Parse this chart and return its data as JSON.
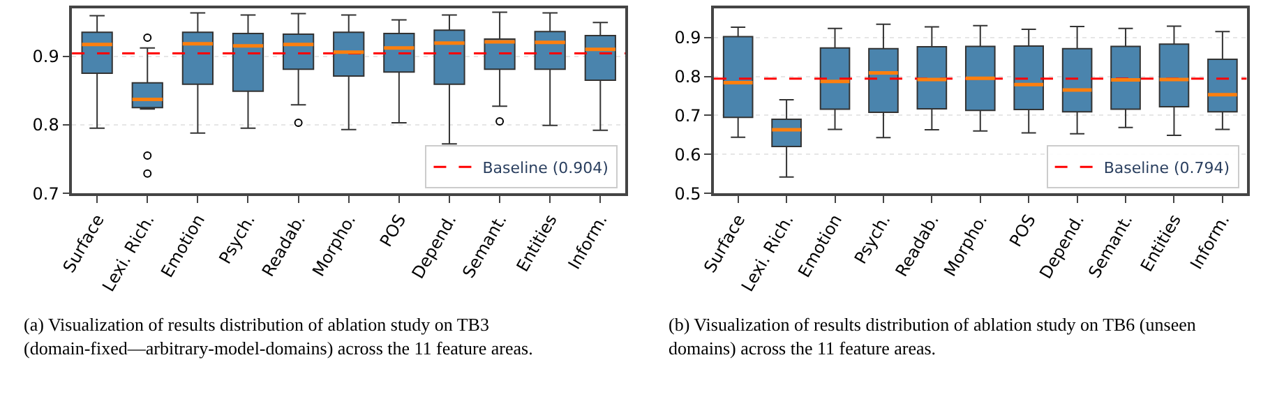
{
  "chart_data": [
    {
      "type": "box",
      "categories": [
        "Surface",
        "Lexi. Rich.",
        "Emotion",
        "Psych.",
        "Readab.",
        "Morpho.",
        "POS",
        "Depend.",
        "Semant.",
        "Entities",
        "Inform."
      ],
      "series": [
        {
          "color": "#4a84ad",
          "boxes": [
            {
              "low": 0.795,
              "q1": 0.875,
              "median": 0.917,
              "q3": 0.935,
              "high": 0.959
            },
            {
              "low": 0.823,
              "q1": 0.825,
              "median": 0.837,
              "q3": 0.861,
              "high": 0.912,
              "outliers": [
                0.927,
                0.755,
                0.729
              ]
            },
            {
              "low": 0.788,
              "q1": 0.859,
              "median": 0.918,
              "q3": 0.935,
              "high": 0.963
            },
            {
              "low": 0.795,
              "q1": 0.849,
              "median": 0.915,
              "q3": 0.933,
              "high": 0.96
            },
            {
              "low": 0.829,
              "q1": 0.881,
              "median": 0.917,
              "q3": 0.932,
              "high": 0.962,
              "outliers": [
                0.803
              ]
            },
            {
              "low": 0.793,
              "q1": 0.871,
              "median": 0.906,
              "q3": 0.935,
              "high": 0.96
            },
            {
              "low": 0.803,
              "q1": 0.877,
              "median": 0.912,
              "q3": 0.933,
              "high": 0.953
            },
            {
              "low": 0.772,
              "q1": 0.859,
              "median": 0.919,
              "q3": 0.938,
              "high": 0.96
            },
            {
              "low": 0.827,
              "q1": 0.881,
              "median": 0.921,
              "q3": 0.925,
              "high": 0.964,
              "outliers": [
                0.805
              ]
            },
            {
              "low": 0.799,
              "q1": 0.881,
              "median": 0.92,
              "q3": 0.936,
              "high": 0.963
            },
            {
              "low": 0.792,
              "q1": 0.865,
              "median": 0.91,
              "q3": 0.93,
              "high": 0.949
            }
          ]
        }
      ],
      "ylim": [
        0.7,
        0.97
      ],
      "yticks": [
        0.7,
        0.8,
        0.9
      ],
      "grid": "y",
      "legend": "bottom right",
      "ref_lines": [
        {
          "axis": "y",
          "value": 0.904,
          "label": "Baseline (0.904)",
          "color": "#ff0000",
          "line_style": "dashed"
        }
      ],
      "annotations": [
        "(a) Visualization of results distribution of ablation study on TB3 (domain-fixed—arbitrary-model-domains) across the 11 feature areas."
      ]
    },
    {
      "type": "box",
      "categories": [
        "Surface",
        "Lexi. Rich.",
        "Emotion",
        "Psych.",
        "Readab.",
        "Morpho.",
        "POS",
        "Depend.",
        "Semant.",
        "Entities",
        "Inform."
      ],
      "series": [
        {
          "color": "#4a84ad",
          "boxes": [
            {
              "low": 0.644,
              "q1": 0.695,
              "median": 0.784,
              "q3": 0.902,
              "high": 0.926
            },
            {
              "low": 0.542,
              "q1": 0.62,
              "median": 0.663,
              "q3": 0.69,
              "high": 0.74
            },
            {
              "low": 0.664,
              "q1": 0.716,
              "median": 0.787,
              "q3": 0.873,
              "high": 0.923
            },
            {
              "low": 0.643,
              "q1": 0.708,
              "median": 0.809,
              "q3": 0.871,
              "high": 0.934
            },
            {
              "low": 0.663,
              "q1": 0.717,
              "median": 0.792,
              "q3": 0.876,
              "high": 0.927
            },
            {
              "low": 0.66,
              "q1": 0.713,
              "median": 0.795,
              "q3": 0.877,
              "high": 0.93
            },
            {
              "low": 0.655,
              "q1": 0.715,
              "median": 0.779,
              "q3": 0.878,
              "high": 0.921
            },
            {
              "low": 0.653,
              "q1": 0.709,
              "median": 0.765,
              "q3": 0.871,
              "high": 0.928
            },
            {
              "low": 0.669,
              "q1": 0.716,
              "median": 0.791,
              "q3": 0.877,
              "high": 0.923
            },
            {
              "low": 0.649,
              "q1": 0.722,
              "median": 0.792,
              "q3": 0.883,
              "high": 0.929
            },
            {
              "low": 0.664,
              "q1": 0.709,
              "median": 0.753,
              "q3": 0.844,
              "high": 0.915
            }
          ]
        }
      ],
      "ylim": [
        0.5,
        0.975
      ],
      "yticks": [
        0.5,
        0.6,
        0.7,
        0.8,
        0.9
      ],
      "grid": "y",
      "legend": "bottom right",
      "ref_lines": [
        {
          "axis": "y",
          "value": 0.794,
          "label": "Baseline (0.794)",
          "color": "#ff0000",
          "line_style": "dashed"
        }
      ],
      "annotations": [
        "(b) Visualization of results distribution of ablation study on TB6 (unseen domains) across the 11 feature areas."
      ]
    }
  ]
}
